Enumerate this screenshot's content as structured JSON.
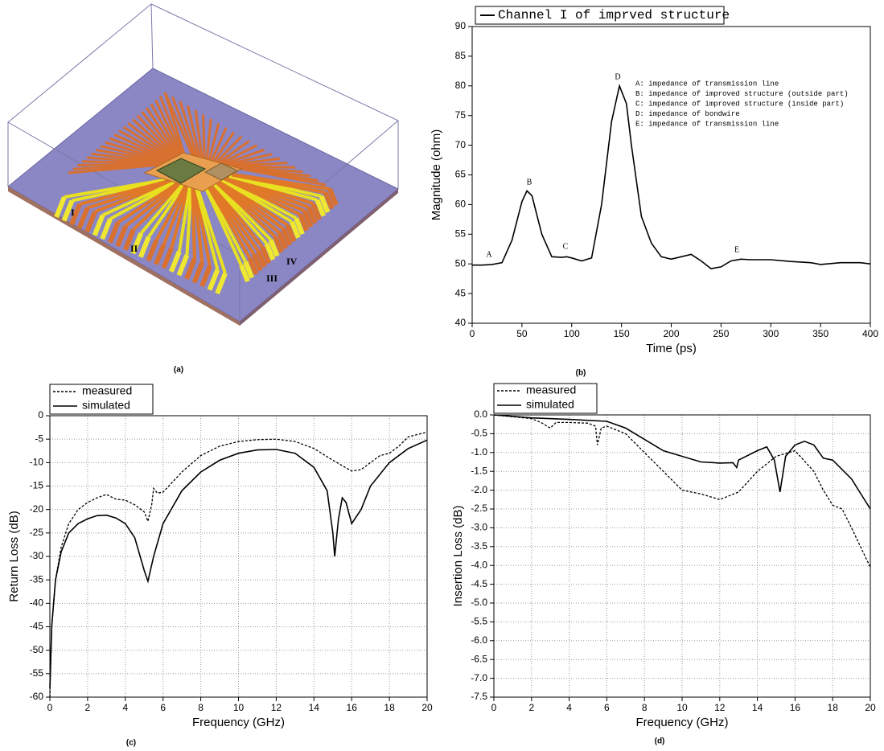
{
  "panel_a": {
    "caption": "(a)",
    "labels": [
      "I",
      "II",
      "III",
      "IV"
    ]
  },
  "chart_data": [
    {
      "type": "line",
      "caption": "(b)",
      "xlabel": "Time (ps)",
      "ylabel": "Magnitude (ohm)",
      "xlim": [
        0,
        400
      ],
      "xticks": [
        0,
        50,
        100,
        150,
        200,
        250,
        300,
        350,
        400
      ],
      "ylim": [
        40,
        90
      ],
      "yticks": [
        40,
        45,
        50,
        55,
        60,
        65,
        70,
        75,
        80,
        85,
        90
      ],
      "grid": false,
      "legend": "upper left",
      "point_labels": [
        "A",
        "B",
        "C",
        "D",
        "E"
      ],
      "annotation": [
        "A: impedance of transmission line",
        "B: impedance of improved structure (outside part)",
        "C: impedance of improved structure (inside part)",
        "D: impedance of bondwire",
        "E: impedance of transmission line"
      ],
      "series": [
        {
          "name": "Channel I of imprved structure",
          "color": "#000000",
          "linestyle": "solid",
          "x": [
            0,
            10,
            20,
            30,
            40,
            50,
            55,
            60,
            70,
            80,
            90,
            95,
            100,
            110,
            120,
            130,
            140,
            148,
            155,
            160,
            170,
            180,
            190,
            200,
            210,
            220,
            230,
            240,
            250,
            260,
            270,
            280,
            300,
            320,
            340,
            350,
            370,
            390,
            400
          ],
          "values": [
            49.8,
            49.8,
            49.9,
            50.2,
            54,
            60.5,
            62.3,
            61.5,
            55,
            51.2,
            51.1,
            51.2,
            51,
            50.5,
            51,
            60,
            74,
            80,
            77,
            70,
            58,
            53.5,
            51.2,
            50.8,
            51.2,
            51.6,
            50.5,
            49.2,
            49.5,
            50.5,
            50.8,
            50.7,
            50.7,
            50.4,
            50.2,
            49.9,
            50.2,
            50.2,
            50
          ]
        }
      ]
    },
    {
      "type": "line",
      "caption": "(c)",
      "xlabel": "Frequency (GHz)",
      "ylabel": "Return Loss (dB)",
      "xlim": [
        0,
        20
      ],
      "xticks": [
        0,
        2,
        4,
        6,
        8,
        10,
        12,
        14,
        16,
        18,
        20
      ],
      "ylim": [
        -60,
        0
      ],
      "yticks": [
        -60,
        -55,
        -50,
        -45,
        -40,
        -35,
        -30,
        -25,
        -20,
        -15,
        -10,
        -5,
        0
      ],
      "grid": true,
      "legend": "upper left",
      "series": [
        {
          "name": "measured",
          "color": "#000000",
          "linestyle": "dashed",
          "x": [
            0,
            0.1,
            0.3,
            0.6,
            1,
            1.5,
            2,
            2.5,
            3,
            3.5,
            4,
            4.5,
            5,
            5.2,
            5.4,
            5.5,
            5.7,
            6,
            7,
            8,
            9,
            10,
            11,
            12,
            13,
            14,
            15,
            16,
            16.5,
            17,
            17.5,
            18,
            18.5,
            19,
            20
          ],
          "values": [
            -60,
            -45,
            -35,
            -28,
            -23,
            -20,
            -18.5,
            -17.5,
            -16.8,
            -17.8,
            -18,
            -19,
            -20.5,
            -22.5,
            -19,
            -15.5,
            -16.5,
            -16.3,
            -12,
            -8.5,
            -6.5,
            -5.5,
            -5.1,
            -5,
            -5.5,
            -7,
            -9.5,
            -11.8,
            -11.5,
            -10,
            -8.5,
            -8,
            -6.5,
            -4.5,
            -3.5
          ]
        },
        {
          "name": "simulated",
          "color": "#000000",
          "linestyle": "solid",
          "x": [
            0,
            0.1,
            0.3,
            0.6,
            1,
            1.5,
            2,
            2.5,
            3,
            3.5,
            4,
            4.5,
            5,
            5.2,
            5.5,
            6,
            7,
            8,
            9,
            10,
            11,
            12,
            13,
            14,
            14.7,
            15,
            15.1,
            15.3,
            15.5,
            15.7,
            16,
            16.5,
            17,
            18,
            19,
            20
          ],
          "values": [
            -58,
            -45,
            -35,
            -29,
            -25,
            -23,
            -22,
            -21.3,
            -21.2,
            -21.8,
            -23,
            -26,
            -33,
            -35.3,
            -30,
            -23,
            -16,
            -12,
            -9.5,
            -8,
            -7.3,
            -7.2,
            -8,
            -11,
            -16,
            -25,
            -30,
            -22,
            -17.5,
            -18.5,
            -23,
            -20,
            -15,
            -10,
            -7,
            -5.2
          ]
        }
      ]
    },
    {
      "type": "line",
      "caption": "(d)",
      "xlabel": "Frequency (GHz)",
      "ylabel": "Insertion Loss (dB)",
      "xlim": [
        0,
        20
      ],
      "xticks": [
        0,
        2,
        4,
        6,
        8,
        10,
        12,
        14,
        16,
        18,
        20
      ],
      "ylim": [
        -7.5,
        0
      ],
      "yticks": [
        -7.5,
        {
          "value": -7,
          "label": "-7.0"
        },
        -6.5,
        {
          "value": -6,
          "label": "-6.0"
        },
        -5.5,
        {
          "value": -5,
          "label": "-5.0"
        },
        -4.5,
        {
          "value": -4,
          "label": "-4.0"
        },
        -3.5,
        {
          "value": -3,
          "label": "-3.0"
        },
        -2.5,
        {
          "value": -2,
          "label": "-2.0"
        },
        -1.5,
        {
          "value": -1,
          "label": "-1.0"
        },
        -0.5,
        {
          "value": 0,
          "label": "0.0"
        }
      ],
      "grid": true,
      "legend": "upper left",
      "series": [
        {
          "name": "measured",
          "color": "#000000",
          "linestyle": "dashed",
          "x": [
            0,
            1,
            2,
            2.5,
            3,
            3.3,
            4,
            5,
            5.4,
            5.5,
            5.7,
            6,
            7,
            8,
            9,
            10,
            11,
            12,
            13,
            14,
            15,
            16,
            17,
            17.5,
            18,
            18.5,
            19,
            20
          ],
          "values": [
            0,
            -0.05,
            -0.1,
            -0.2,
            -0.35,
            -0.2,
            -0.2,
            -0.22,
            -0.3,
            -0.8,
            -0.35,
            -0.3,
            -0.5,
            -1,
            -1.5,
            -2,
            -2.1,
            -2.25,
            -2.05,
            -1.5,
            -1.1,
            -0.95,
            -1.5,
            -2,
            -2.4,
            -2.5,
            -3,
            -4.05
          ]
        },
        {
          "name": "simulated",
          "color": "#000000",
          "linestyle": "solid",
          "x": [
            0,
            2,
            4,
            6,
            7,
            8,
            9,
            10,
            11,
            12,
            12.7,
            12.9,
            13,
            14,
            14.5,
            14.9,
            15.2,
            15.5,
            16,
            16.5,
            17,
            17.5,
            18,
            19,
            20
          ],
          "values": [
            0,
            -0.08,
            -0.12,
            -0.17,
            -0.35,
            -0.65,
            -0.95,
            -1.1,
            -1.25,
            -1.28,
            -1.27,
            -1.4,
            -1.2,
            -0.95,
            -0.85,
            -1.2,
            -2.05,
            -1.1,
            -0.8,
            -0.7,
            -0.8,
            -1.15,
            -1.2,
            -1.7,
            -2.5
          ]
        }
      ]
    }
  ]
}
